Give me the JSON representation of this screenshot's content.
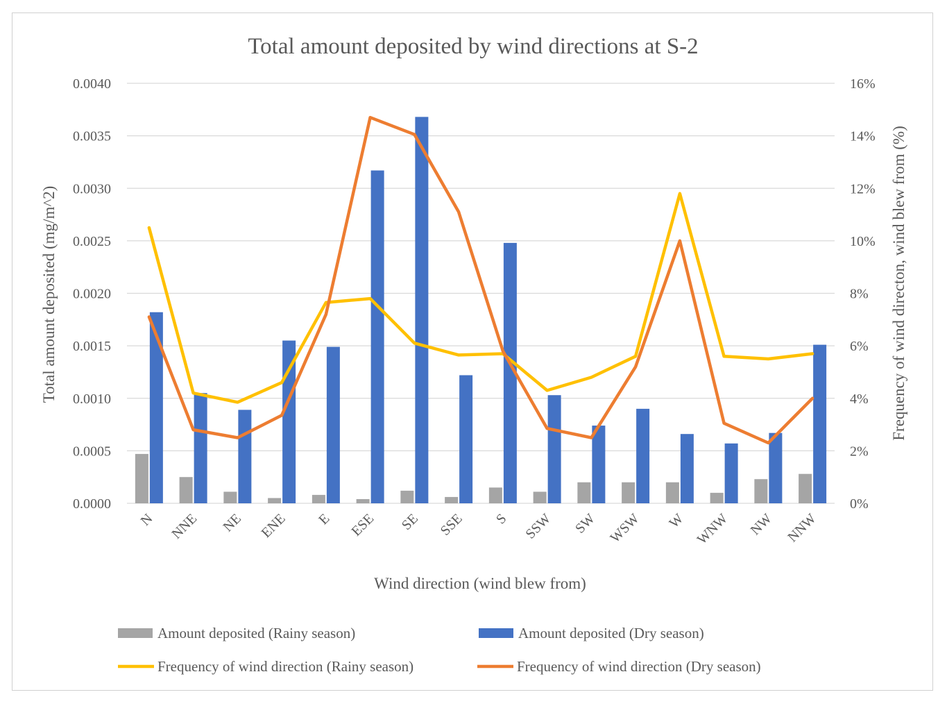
{
  "chart_data": {
    "type": "bar+line",
    "title": "Total amount deposited by wind directions at S-2",
    "xlabel": "Wind direction (wind blew from)",
    "ylabel": "Total amount deposited (mg/m^2)",
    "y2label": "Frequency of wind directon, wind blew from (%)",
    "categories": [
      "N",
      "NNE",
      "NE",
      "ENE",
      "E",
      "ESE",
      "SE",
      "SSE",
      "S",
      "SSW",
      "SW",
      "WSW",
      "W",
      "WNW",
      "NW",
      "NNW"
    ],
    "ylim": [
      0,
      0.004
    ],
    "yticks": [
      "0.0000",
      "0.0005",
      "0.0010",
      "0.0015",
      "0.0020",
      "0.0025",
      "0.0030",
      "0.0035",
      "0.0040"
    ],
    "y2lim": [
      0,
      16
    ],
    "y2ticks": [
      "0%",
      "2%",
      "4%",
      "6%",
      "8%",
      "10%",
      "12%",
      "14%",
      "16%"
    ],
    "bar_series": [
      {
        "name": "Amount deposited (Rainy season)",
        "color": "#a5a5a5",
        "values": [
          0.00047,
          0.00025,
          0.00011,
          5e-05,
          8e-05,
          4e-05,
          0.00012,
          6e-05,
          0.00015,
          0.00011,
          0.0002,
          0.0002,
          0.0002,
          0.0001,
          0.00023,
          0.00028
        ]
      },
      {
        "name": "Amount deposited (Dry season)",
        "color": "#4472c4",
        "values": [
          0.00182,
          0.00105,
          0.00089,
          0.00155,
          0.00149,
          0.00317,
          0.00368,
          0.00122,
          0.00248,
          0.00103,
          0.00074,
          0.0009,
          0.00066,
          0.00057,
          0.00067,
          0.00151
        ]
      }
    ],
    "line_series": [
      {
        "name": "Frequency of wind direction (Rainy season)",
        "color": "#ffc000",
        "values": [
          10.5,
          4.2,
          3.85,
          4.6,
          7.65,
          7.8,
          6.1,
          5.65,
          5.7,
          4.3,
          4.8,
          5.6,
          11.8,
          5.6,
          5.5,
          5.7
        ]
      },
      {
        "name": "Frequency of wind direction (Dry season)",
        "color": "#ed7d31",
        "values": [
          7.1,
          2.8,
          2.5,
          3.35,
          7.2,
          14.7,
          14.05,
          11.1,
          5.8,
          2.85,
          2.5,
          5.2,
          10.0,
          3.05,
          2.3,
          4.0
        ]
      }
    ]
  }
}
